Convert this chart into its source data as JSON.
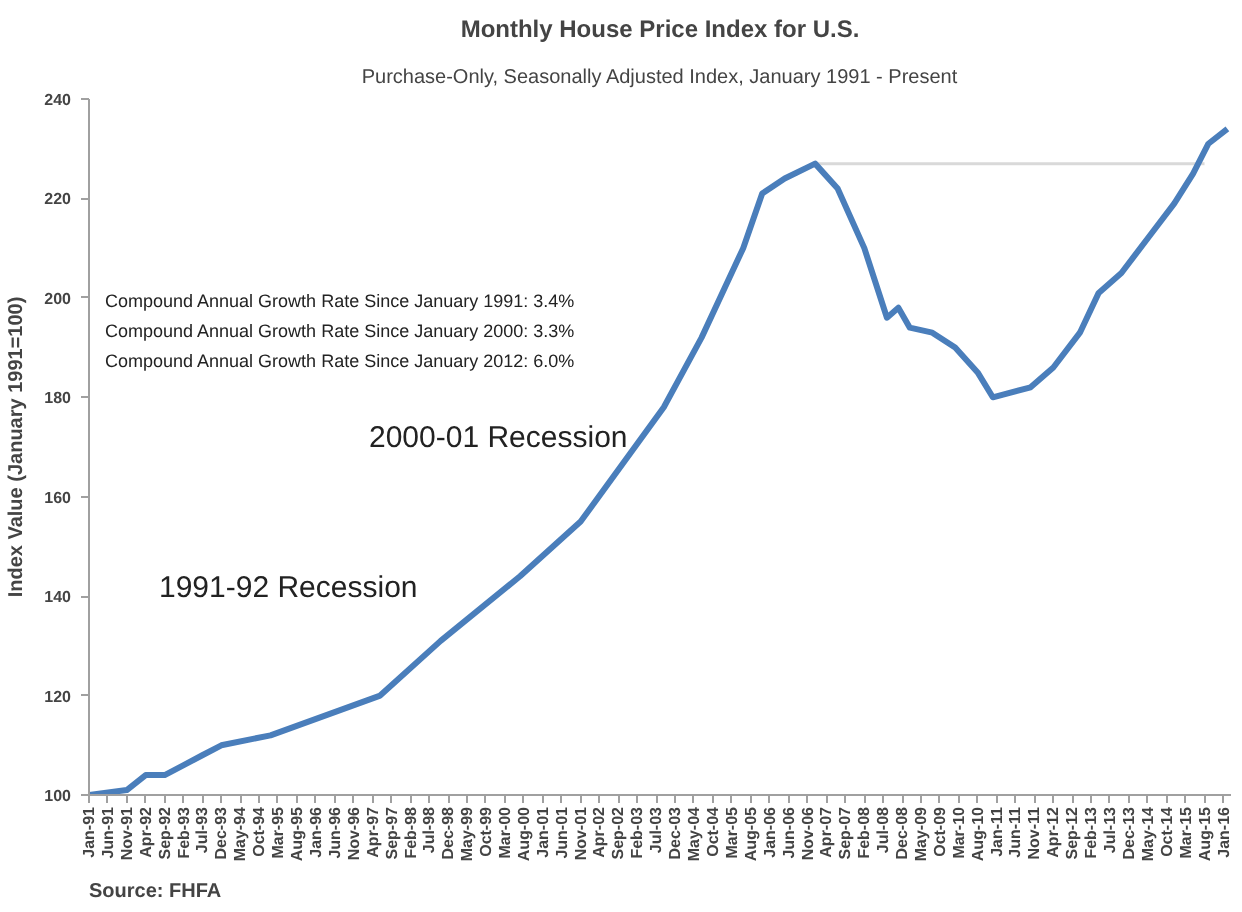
{
  "chart_data": {
    "type": "line",
    "title": "Monthly House Price Index for U.S.",
    "subtitle": "Purchase-Only, Seasonally Adjusted Index, January 1991 - Present",
    "ylabel": "Index Value (January 1991=100)",
    "annotations": [
      "Compound Annual Growth Rate Since January 1991:  3.4%",
      "Compound Annual Growth Rate Since January 2000:  3.3%",
      "Compound Annual Growth Rate Since January 2012:  6.0%",
      "2000-01 Recession",
      "1991-92 Recession",
      "Source: FHFA"
    ],
    "series": [
      {
        "color": "#4a7ebb",
        "x": [
          "1991-01",
          "1991-11",
          "1992-04",
          "1992-09",
          "1993-02",
          "1993-07",
          "1993-12",
          "1995-01",
          "1997-06",
          "1998-10",
          "2000-07",
          "2001-11",
          "2003-09",
          "2004-07",
          "2005-06",
          "2005-11",
          "2006-05",
          "2007-01",
          "2007-07",
          "2008-02",
          "2008-08",
          "2008-11",
          "2009-02",
          "2009-08",
          "2010-02",
          "2010-08",
          "2010-12",
          "2011-10",
          "2012-04",
          "2012-11",
          "2013-04",
          "2013-10",
          "2014-06",
          "2014-12",
          "2015-05",
          "2015-09",
          "2016-02"
        ],
        "values": [
          100,
          101,
          104,
          104,
          106,
          108,
          110,
          112,
          120,
          131,
          144,
          155,
          178,
          192,
          210,
          221,
          224,
          227,
          222,
          210,
          196,
          198,
          194,
          193,
          190,
          185,
          180,
          182,
          186,
          193,
          201,
          205,
          213,
          219,
          225,
          231,
          234
        ]
      },
      {
        "color": "#d9d9d9",
        "x": [
          "2007-01",
          "2015-08"
        ],
        "values": [
          227,
          227
        ]
      }
    ],
    "xlim": [
      "1991-01",
      "2016-03"
    ],
    "ylim": [
      100,
      240
    ],
    "yticks": [
      100,
      120,
      140,
      160,
      180,
      200,
      220,
      240
    ],
    "xticks": [
      {
        "value": "1991-01",
        "label": "Jan-91"
      },
      {
        "value": "1991-06",
        "label": "Jun-91"
      },
      {
        "value": "1991-11",
        "label": "Nov-91"
      },
      {
        "value": "1992-04",
        "label": "Apr-92"
      },
      {
        "value": "1992-09",
        "label": "Sep-92"
      },
      {
        "value": "1993-02",
        "label": "Feb-93"
      },
      {
        "value": "1993-07",
        "label": "Jul-93"
      },
      {
        "value": "1993-12",
        "label": "Dec-93"
      },
      {
        "value": "1994-05",
        "label": "May-94"
      },
      {
        "value": "1994-10",
        "label": "Oct-94"
      },
      {
        "value": "1995-03",
        "label": "Mar-95"
      },
      {
        "value": "1995-08",
        "label": "Aug-95"
      },
      {
        "value": "1996-01",
        "label": "Jan-96"
      },
      {
        "value": "1996-06",
        "label": "Jun-96"
      },
      {
        "value": "1996-11",
        "label": "Nov-96"
      },
      {
        "value": "1997-04",
        "label": "Apr-97"
      },
      {
        "value": "1997-09",
        "label": "Sep-97"
      },
      {
        "value": "1998-02",
        "label": "Feb-98"
      },
      {
        "value": "1998-07",
        "label": "Jul-98"
      },
      {
        "value": "1998-12",
        "label": "Dec-98"
      },
      {
        "value": "1999-05",
        "label": "May-99"
      },
      {
        "value": "1999-10",
        "label": "Oct-99"
      },
      {
        "value": "2000-03",
        "label": "Mar-00"
      },
      {
        "value": "2000-08",
        "label": "Aug-00"
      },
      {
        "value": "2001-01",
        "label": "Jan-01"
      },
      {
        "value": "2001-06",
        "label": "Jun-01"
      },
      {
        "value": "2001-11",
        "label": "Nov-01"
      },
      {
        "value": "2002-04",
        "label": "Apr-02"
      },
      {
        "value": "2002-09",
        "label": "Sep-02"
      },
      {
        "value": "2003-02",
        "label": "Feb-03"
      },
      {
        "value": "2003-07",
        "label": "Jul-03"
      },
      {
        "value": "2003-12",
        "label": "Dec-03"
      },
      {
        "value": "2004-05",
        "label": "May-04"
      },
      {
        "value": "2004-10",
        "label": "Oct-04"
      },
      {
        "value": "2005-03",
        "label": "Mar-05"
      },
      {
        "value": "2005-08",
        "label": "Aug-05"
      },
      {
        "value": "2006-01",
        "label": "Jan-06"
      },
      {
        "value": "2006-06",
        "label": "Jun-06"
      },
      {
        "value": "2006-11",
        "label": "Nov-06"
      },
      {
        "value": "2007-04",
        "label": "Apr-07"
      },
      {
        "value": "2007-09",
        "label": "Sep-07"
      },
      {
        "value": "2008-02",
        "label": "Feb-08"
      },
      {
        "value": "2008-07",
        "label": "Jul-08"
      },
      {
        "value": "2008-12",
        "label": "Dec-08"
      },
      {
        "value": "2009-05",
        "label": "May-09"
      },
      {
        "value": "2009-10",
        "label": "Oct-09"
      },
      {
        "value": "2010-03",
        "label": "Mar-10"
      },
      {
        "value": "2010-08",
        "label": "Aug-10"
      },
      {
        "value": "2011-01",
        "label": "Jan-11"
      },
      {
        "value": "2011-06",
        "label": "Jun-11"
      },
      {
        "value": "2011-11",
        "label": "Nov-11"
      },
      {
        "value": "2012-04",
        "label": "Apr-12"
      },
      {
        "value": "2012-09",
        "label": "Sep-12"
      },
      {
        "value": "2013-02",
        "label": "Feb-13"
      },
      {
        "value": "2013-07",
        "label": "Jul-13"
      },
      {
        "value": "2013-12",
        "label": "Dec-13"
      },
      {
        "value": "2014-05",
        "label": "May-14"
      },
      {
        "value": "2014-10",
        "label": "Oct-14"
      },
      {
        "value": "2015-03",
        "label": "Mar-15"
      },
      {
        "value": "2015-08",
        "label": "Aug-15"
      },
      {
        "value": "2016-01",
        "label": "Jan-16"
      }
    ],
    "grid": false
  }
}
